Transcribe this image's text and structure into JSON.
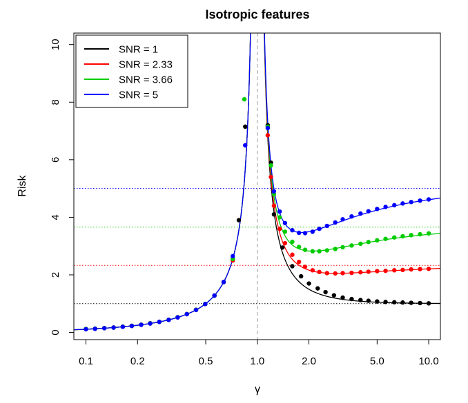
{
  "chart_data": {
    "type": "line",
    "title": "Isotropic features",
    "xlabel": "γ",
    "ylabel": "Risk",
    "xscale": "log",
    "xlim": [
      0.085,
      11.7
    ],
    "ylim": [
      -0.25,
      10.4
    ],
    "xticks": [
      0.1,
      0.2,
      0.5,
      1.0,
      2.0,
      5.0,
      10.0
    ],
    "xtick_labels": [
      "0.1",
      "0.2",
      "0.5",
      "1.0",
      "2.0",
      "5.0",
      "10.0"
    ],
    "yticks": [
      0,
      2,
      4,
      6,
      8,
      10
    ],
    "ytick_labels": [
      "0",
      "2",
      "4",
      "6",
      "8",
      "10"
    ],
    "grid": false,
    "legend_position": "top-left",
    "reference_vline": {
      "x": 1.0,
      "color": "#bbbbbb",
      "style": "dashed"
    },
    "series": [
      {
        "name": "SNR = 1",
        "color": "#000000",
        "snr": 1,
        "points": [
          [
            0.1,
            0.111
          ],
          [
            0.113,
            0.127
          ],
          [
            0.128,
            0.147
          ],
          [
            0.145,
            0.169
          ],
          [
            0.164,
            0.196
          ],
          [
            0.185,
            0.227
          ],
          [
            0.21,
            0.266
          ],
          [
            0.237,
            0.311
          ],
          [
            0.268,
            0.366
          ],
          [
            0.304,
            0.436
          ],
          [
            0.343,
            0.522
          ],
          [
            0.388,
            0.635
          ],
          [
            0.439,
            0.782
          ],
          [
            0.497,
            0.988
          ],
          [
            0.562,
            1.28
          ],
          [
            0.636,
            1.75
          ],
          [
            0.719,
            2.56
          ],
          [
            0.78,
            3.9
          ],
          [
            0.85,
            7.15
          ],
          [
            1.15,
            7.2
          ],
          [
            1.2,
            5.9
          ],
          [
            1.25,
            4.1
          ],
          [
            1.4,
            2.95
          ],
          [
            1.6,
            2.3
          ],
          [
            1.8,
            1.95
          ],
          [
            2.0,
            1.7
          ],
          [
            2.25,
            1.53
          ],
          [
            2.5,
            1.4
          ],
          [
            2.8,
            1.29
          ],
          [
            3.15,
            1.21
          ],
          [
            3.55,
            1.16
          ],
          [
            4.0,
            1.125
          ],
          [
            4.45,
            1.1
          ],
          [
            5.0,
            1.077
          ],
          [
            5.6,
            1.059
          ],
          [
            6.3,
            1.049
          ],
          [
            7.05,
            1.04
          ],
          [
            7.9,
            1.03
          ],
          [
            8.9,
            1.02
          ],
          [
            10.0,
            1.011
          ]
        ]
      },
      {
        "name": "SNR = 2.33",
        "color": "#ff0000",
        "snr": 2.33,
        "points": [
          [
            0.1,
            0.12
          ],
          [
            0.113,
            0.13
          ],
          [
            0.128,
            0.15
          ],
          [
            0.145,
            0.17
          ],
          [
            0.164,
            0.2
          ],
          [
            0.185,
            0.23
          ],
          [
            0.21,
            0.27
          ],
          [
            0.237,
            0.32
          ],
          [
            0.268,
            0.37
          ],
          [
            0.304,
            0.44
          ],
          [
            0.343,
            0.53
          ],
          [
            0.388,
            0.64
          ],
          [
            0.439,
            0.79
          ],
          [
            0.497,
            0.99
          ],
          [
            0.562,
            1.28
          ],
          [
            0.636,
            1.75
          ],
          [
            0.719,
            2.5
          ],
          [
            0.85,
            6.5
          ],
          [
            1.15,
            6.85
          ],
          [
            1.2,
            5.4
          ],
          [
            1.25,
            4.4
          ],
          [
            1.35,
            3.6
          ],
          [
            1.45,
            3.1
          ],
          [
            1.6,
            2.7
          ],
          [
            1.75,
            2.45
          ],
          [
            1.9,
            2.28
          ],
          [
            2.1,
            2.16
          ],
          [
            2.3,
            2.1
          ],
          [
            2.55,
            2.06
          ],
          [
            2.85,
            2.05
          ],
          [
            3.15,
            2.06
          ],
          [
            3.55,
            2.07
          ],
          [
            4.0,
            2.09
          ],
          [
            4.45,
            2.11
          ],
          [
            5.0,
            2.13
          ],
          [
            5.6,
            2.14
          ],
          [
            6.3,
            2.16
          ],
          [
            7.05,
            2.17
          ],
          [
            7.9,
            2.19
          ],
          [
            8.9,
            2.2
          ],
          [
            10.0,
            2.21
          ]
        ]
      },
      {
        "name": "SNR = 3.66",
        "color": "#00cc00",
        "snr": 3.66,
        "points": [
          [
            0.1,
            0.12
          ],
          [
            0.113,
            0.13
          ],
          [
            0.128,
            0.15
          ],
          [
            0.145,
            0.17
          ],
          [
            0.164,
            0.2
          ],
          [
            0.185,
            0.23
          ],
          [
            0.21,
            0.27
          ],
          [
            0.237,
            0.32
          ],
          [
            0.268,
            0.37
          ],
          [
            0.304,
            0.44
          ],
          [
            0.343,
            0.53
          ],
          [
            0.388,
            0.64
          ],
          [
            0.439,
            0.79
          ],
          [
            0.497,
            0.99
          ],
          [
            0.562,
            1.28
          ],
          [
            0.636,
            1.75
          ],
          [
            0.719,
            2.55
          ],
          [
            0.84,
            8.1
          ],
          [
            1.15,
            7.15
          ],
          [
            1.2,
            5.8
          ],
          [
            1.25,
            4.8
          ],
          [
            1.35,
            4.0
          ],
          [
            1.45,
            3.5
          ],
          [
            1.6,
            3.15
          ],
          [
            1.75,
            2.97
          ],
          [
            1.9,
            2.87
          ],
          [
            2.1,
            2.82
          ],
          [
            2.3,
            2.82
          ],
          [
            2.55,
            2.85
          ],
          [
            2.85,
            2.9
          ],
          [
            3.15,
            2.96
          ],
          [
            3.55,
            3.02
          ],
          [
            4.0,
            3.08
          ],
          [
            4.45,
            3.14
          ],
          [
            5.0,
            3.2
          ],
          [
            5.6,
            3.25
          ],
          [
            6.3,
            3.3
          ],
          [
            7.05,
            3.34
          ],
          [
            7.9,
            3.38
          ],
          [
            8.9,
            3.41
          ],
          [
            10.0,
            3.44
          ]
        ]
      },
      {
        "name": "SNR = 5",
        "color": "#0000ff",
        "snr": 5,
        "points": [
          [
            0.1,
            0.111
          ],
          [
            0.113,
            0.127
          ],
          [
            0.128,
            0.147
          ],
          [
            0.145,
            0.169
          ],
          [
            0.164,
            0.196
          ],
          [
            0.185,
            0.227
          ],
          [
            0.21,
            0.266
          ],
          [
            0.237,
            0.311
          ],
          [
            0.268,
            0.366
          ],
          [
            0.304,
            0.436
          ],
          [
            0.343,
            0.522
          ],
          [
            0.388,
            0.635
          ],
          [
            0.439,
            0.782
          ],
          [
            0.497,
            0.988
          ],
          [
            0.562,
            1.28
          ],
          [
            0.636,
            1.75
          ],
          [
            0.719,
            2.65
          ],
          [
            0.85,
            6.5
          ],
          [
            1.15,
            7.1
          ],
          [
            1.25,
            4.9
          ],
          [
            1.35,
            4.2
          ],
          [
            1.45,
            3.8
          ],
          [
            1.6,
            3.55
          ],
          [
            1.75,
            3.46
          ],
          [
            1.9,
            3.45
          ],
          [
            2.1,
            3.5
          ],
          [
            2.3,
            3.6
          ],
          [
            2.55,
            3.7
          ],
          [
            2.85,
            3.82
          ],
          [
            3.15,
            3.93
          ],
          [
            3.55,
            4.03
          ],
          [
            4.0,
            4.13
          ],
          [
            4.45,
            4.21
          ],
          [
            5.0,
            4.29
          ],
          [
            5.6,
            4.36
          ],
          [
            6.3,
            4.42
          ],
          [
            7.05,
            4.48
          ],
          [
            7.9,
            4.53
          ],
          [
            8.9,
            4.58
          ],
          [
            10.0,
            4.62
          ]
        ]
      }
    ]
  }
}
